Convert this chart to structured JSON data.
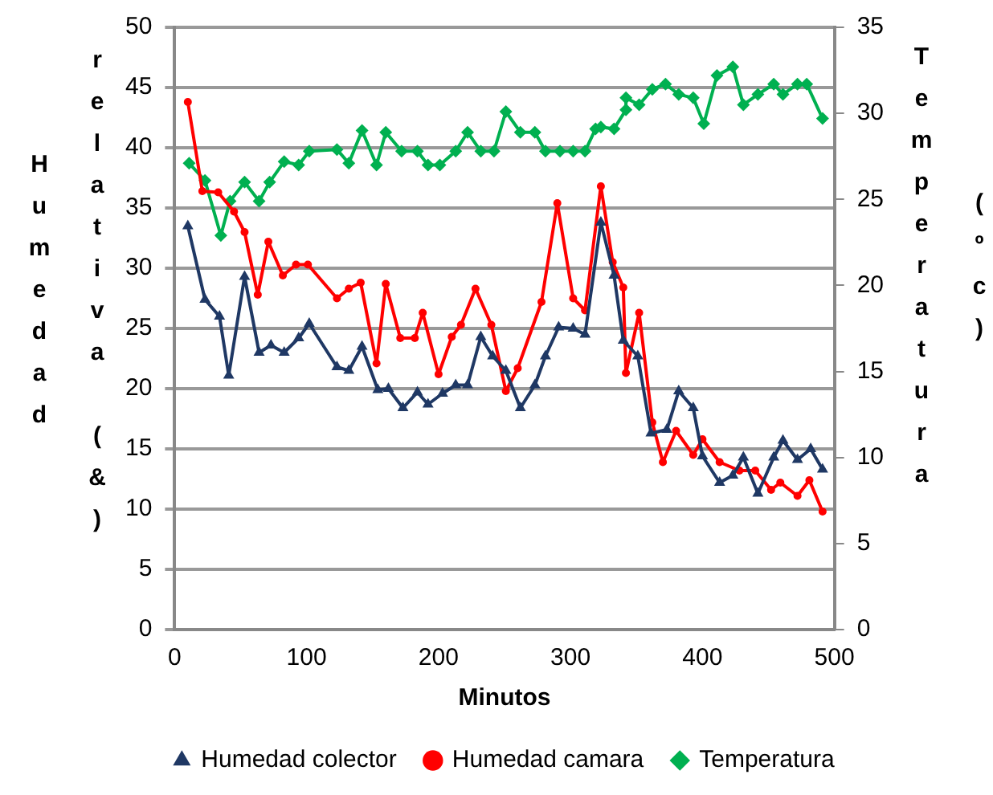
{
  "chart_data": {
    "type": "line",
    "xlabel": "Minutos",
    "ylabel": "Humedad relativa (&)",
    "y2label": "Temperatura (ºc)",
    "xlim": [
      0,
      500
    ],
    "xticks": [
      0,
      100,
      200,
      300,
      400,
      500
    ],
    "ylim": [
      0,
      50
    ],
    "yticks": [
      0,
      5,
      10,
      15,
      20,
      25,
      30,
      35,
      40,
      45,
      50
    ],
    "y2lim": [
      0,
      35
    ],
    "y2ticks": [
      0,
      5,
      10,
      15,
      20,
      25,
      30,
      35
    ],
    "grid": "y",
    "legend": "bottom",
    "series": [
      {
        "name": "Humedad colector",
        "color": "#1f3864",
        "marker": "triangle",
        "x": [
          10,
          23,
          34,
          41,
          53,
          64,
          73,
          83,
          94,
          102,
          123,
          132,
          142,
          154,
          162,
          173,
          184,
          192,
          203,
          213,
          222,
          232,
          241,
          251,
          262,
          273,
          281,
          291,
          302,
          311,
          323,
          333,
          340,
          351,
          361,
          373,
          382,
          393,
          400,
          413,
          423,
          431,
          442,
          454,
          461,
          472,
          482,
          491
        ],
        "values": [
          33.5,
          27.4,
          26.0,
          21.1,
          29.3,
          23.0,
          23.6,
          23.0,
          24.2,
          25.4,
          21.8,
          21.5,
          23.5,
          19.9,
          20.0,
          18.4,
          19.7,
          18.7,
          19.6,
          20.3,
          20.3,
          24.3,
          22.7,
          21.5,
          18.4,
          20.3,
          22.7,
          25.1,
          25.0,
          24.5,
          33.8,
          29.4,
          24.0,
          22.7,
          16.3,
          16.6,
          19.8,
          18.4,
          14.4,
          12.2,
          12.8,
          14.3,
          11.3,
          14.3,
          15.7,
          14.1,
          15.0,
          13.3
        ]
      },
      {
        "name": "Humedad camara",
        "color": "#ff0000",
        "marker": "circle",
        "line_style": "solid",
        "x": [
          10,
          21,
          33,
          45,
          53,
          63,
          71,
          82,
          92,
          101,
          123,
          132,
          141,
          153,
          160,
          171,
          182,
          188,
          200,
          210,
          217,
          228,
          240,
          251,
          260,
          278,
          290,
          302,
          311,
          323,
          332,
          340,
          342,
          352,
          362,
          370,
          380,
          393,
          400,
          413,
          428,
          440,
          452,
          459,
          472,
          481,
          491
        ],
        "values": [
          43.8,
          36.4,
          36.3,
          34.7,
          33.0,
          27.8,
          32.2,
          29.4,
          30.3,
          30.3,
          27.5,
          28.3,
          28.8,
          22.1,
          28.7,
          24.2,
          24.2,
          26.3,
          21.2,
          24.3,
          25.3,
          28.3,
          25.3,
          19.8,
          21.7,
          27.2,
          35.4,
          27.5,
          26.5,
          36.8,
          30.5,
          28.4,
          21.3,
          26.3,
          17.2,
          13.9,
          16.5,
          14.5,
          15.8,
          13.9,
          13.2,
          13.2,
          11.6,
          12.2,
          11.1,
          12.4,
          9.8
        ]
      },
      {
        "name": "Temperatura",
        "color": "#00b050",
        "marker": "diamond",
        "axis": "y2",
        "x": [
          11,
          23,
          35,
          42,
          53,
          64,
          72,
          83,
          94,
          102,
          123,
          132,
          142,
          153,
          160,
          172,
          184,
          192,
          201,
          213,
          222,
          232,
          242,
          251,
          262,
          273,
          281,
          292,
          302,
          311,
          319,
          323,
          333,
          342,
          342,
          352,
          362,
          372,
          382,
          393,
          401,
          411,
          423,
          431,
          442,
          454,
          461,
          472,
          479,
          491
        ],
        "values": [
          27.1,
          26.1,
          22.9,
          24.9,
          26.0,
          24.9,
          26.0,
          27.2,
          27.0,
          27.8,
          27.9,
          27.1,
          29.0,
          27.0,
          28.9,
          27.8,
          27.8,
          27.0,
          27.0,
          27.8,
          28.9,
          27.8,
          27.8,
          30.1,
          28.9,
          28.9,
          27.8,
          27.8,
          27.8,
          27.8,
          29.1,
          29.2,
          29.1,
          30.2,
          30.9,
          30.5,
          31.4,
          31.7,
          31.1,
          30.9,
          29.4,
          32.2,
          32.7,
          30.5,
          31.1,
          31.7,
          31.1,
          31.7,
          31.7,
          29.7
        ]
      }
    ]
  }
}
